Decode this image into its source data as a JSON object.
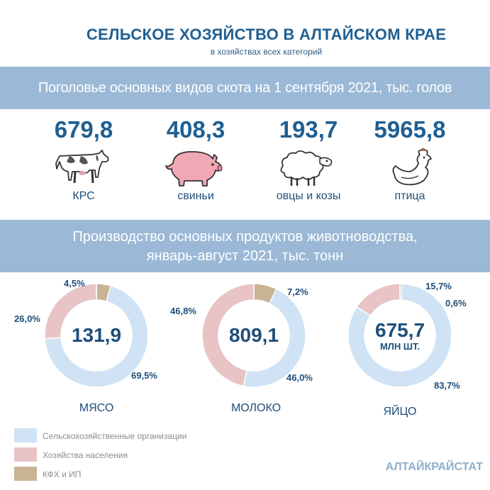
{
  "header": {
    "title": "СЕЛЬСКОЕ ХОЗЯЙСТВО В АЛТАЙСКОМ КРАЕ",
    "subtitle": "в хозяйствах всех категорий"
  },
  "livestock": {
    "heading": "Поголовье основных видов скота на 1 сентября 2021, тыс. голов",
    "items": [
      {
        "value": "679,8",
        "label": "КРС",
        "icon": "cow-icon"
      },
      {
        "value": "408,3",
        "label": "свиньи",
        "icon": "pig-icon"
      },
      {
        "value": "193,7",
        "label": "овцы и козы",
        "icon": "sheep-icon"
      },
      {
        "value": "5965,8",
        "label": "птица",
        "icon": "hen-icon"
      }
    ]
  },
  "production": {
    "heading_line1": "Производство основных продуктов животноводства,",
    "heading_line2": "январь-август 2021, тыс. тонн"
  },
  "chart_data": [
    {
      "type": "pie",
      "name": "МЯСО",
      "center_value": "131,9",
      "center_unit": "",
      "categories": [
        "Сельскохозяйственные организации",
        "Хозяйства населения",
        "КФХ и ИП"
      ],
      "values": [
        69.5,
        26.0,
        4.5
      ],
      "labels": [
        "69,5%",
        "26,0%",
        "4,5%"
      ]
    },
    {
      "type": "pie",
      "name": "МОЛОКО",
      "center_value": "809,1",
      "center_unit": "",
      "categories": [
        "Сельскохозяйственные организации",
        "Хозяйства населения",
        "КФХ и ИП"
      ],
      "values": [
        46.0,
        46.8,
        7.2
      ],
      "labels": [
        "46,0%",
        "46,8%",
        "7,2%"
      ]
    },
    {
      "type": "pie",
      "name": "ЯЙЦО",
      "center_value": "675,7",
      "center_unit": "МЛН ШТ.",
      "categories": [
        "Сельскохозяйственные организации",
        "Хозяйства населения",
        "КФХ и ИП"
      ],
      "values": [
        83.7,
        15.7,
        0.6
      ],
      "labels": [
        "83,7%",
        "15,7%",
        "0,6%"
      ]
    }
  ],
  "legend": {
    "items": [
      {
        "label": "Сельскохозяйственные  организации",
        "color": "#cfe3f5"
      },
      {
        "label": "Хозяйства  населения",
        "color": "#e8c4c6"
      },
      {
        "label": "КФХ и ИП",
        "color": "#c8b395"
      }
    ]
  },
  "colors": {
    "org": "#cfe3f5",
    "household": "#e8c4c6",
    "farm": "#c8b395",
    "band": "#9bb9d6",
    "title": "#1f5f92"
  },
  "footer": {
    "source": "АЛТАЙКРАЙСТАТ"
  }
}
